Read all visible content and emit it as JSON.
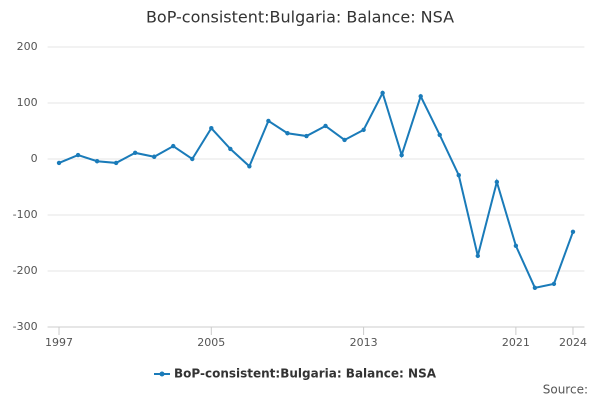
{
  "chart_data": {
    "type": "line",
    "title": "BoP-consistent:Bulgaria: Balance: NSA",
    "x": [
      1997,
      1998,
      1999,
      2000,
      2001,
      2002,
      2003,
      2004,
      2005,
      2006,
      2007,
      2008,
      2009,
      2010,
      2011,
      2012,
      2013,
      2014,
      2015,
      2016,
      2017,
      2018,
      2019,
      2020,
      2021,
      2022,
      2023,
      2024
    ],
    "series": [
      {
        "name": "BoP-consistent:Bulgaria: Balance: NSA",
        "color": "#1a7bb9",
        "values": [
          -7,
          7,
          -4,
          -7,
          11,
          4,
          23,
          0,
          55,
          18,
          -13,
          68,
          46,
          41,
          59,
          34,
          52,
          118,
          7,
          112,
          43,
          -29,
          -173,
          -41,
          -155,
          -230,
          -223,
          -130
        ]
      }
    ],
    "xlim": [
      1996.4,
      2024.6
    ],
    "xticks": [
      1997,
      2005,
      2013,
      2021,
      2024
    ],
    "ylim": [
      -300,
      200
    ],
    "yticks": [
      -300,
      -200,
      -100,
      0,
      100,
      200
    ],
    "grid": true,
    "source": "Source:"
  }
}
